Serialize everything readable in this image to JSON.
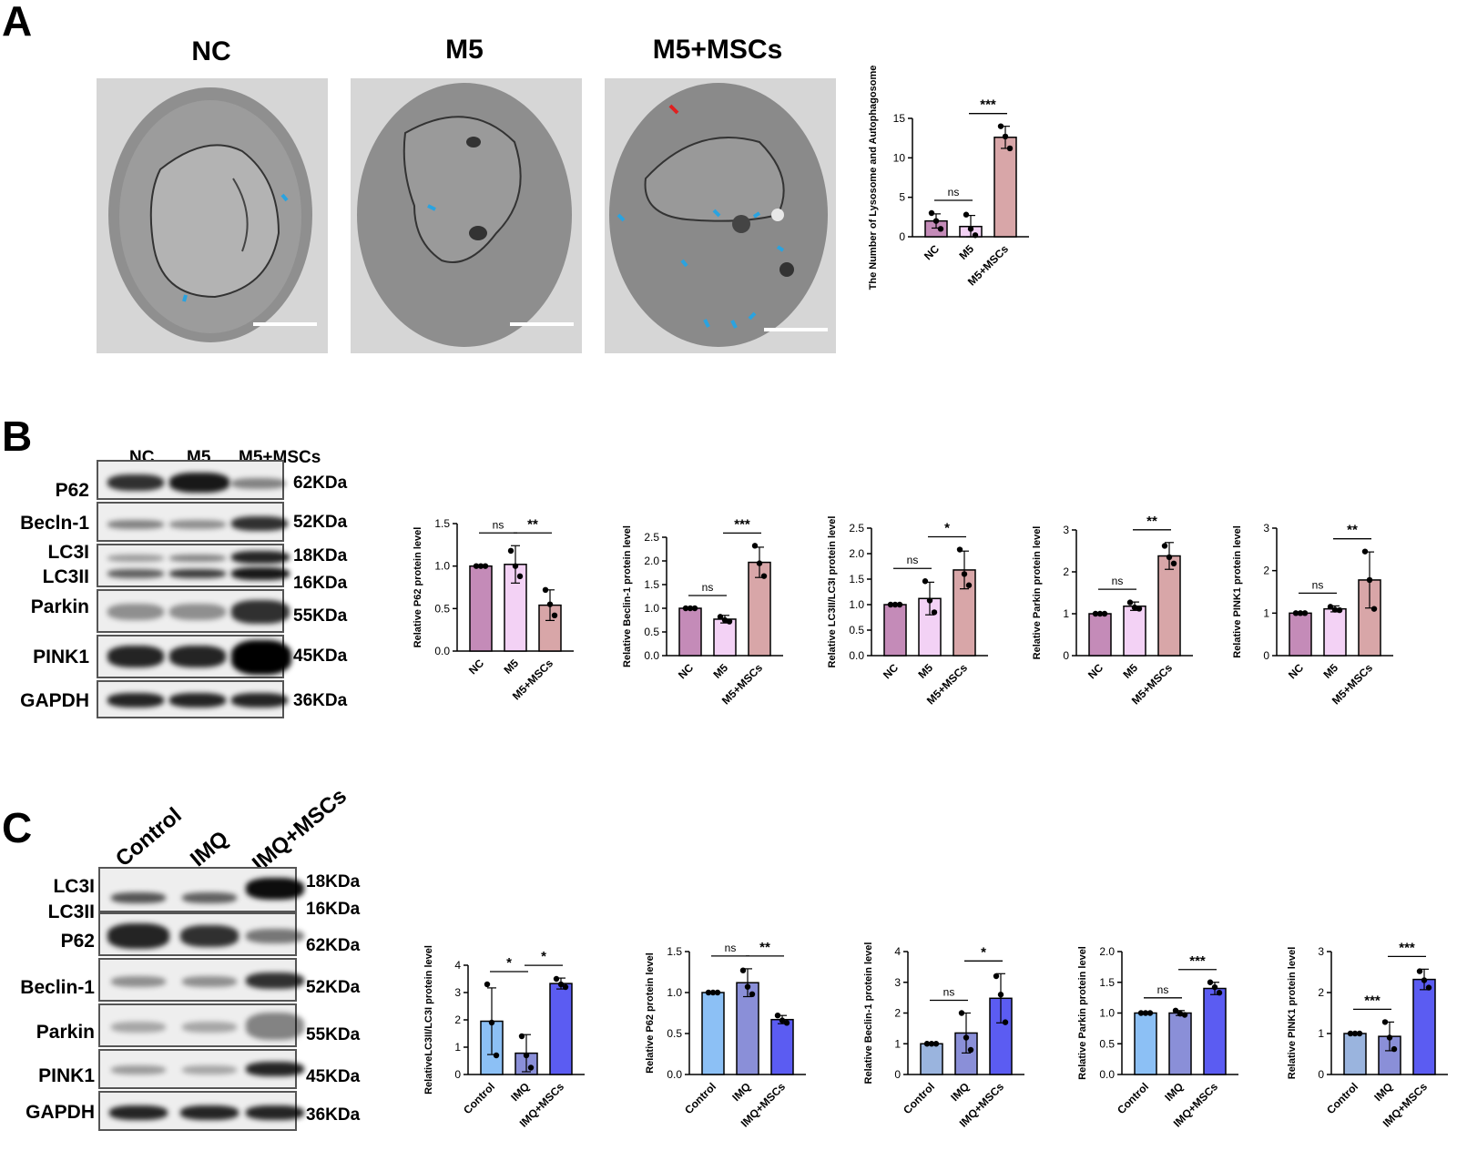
{
  "panels": {
    "a": "A",
    "b": "B",
    "c": "C"
  },
  "em": {
    "titles": [
      "NC",
      "M5",
      "M5+MSCs"
    ]
  },
  "blot_b": {
    "lanes": [
      "NC",
      "M5",
      "M5+MSCs"
    ],
    "proteins": [
      "P62",
      "Becln-1",
      "LC3I",
      "LC3II",
      "Parkin",
      "PINK1",
      "GAPDH"
    ],
    "kda": [
      "62KDa",
      "52KDa",
      "18KDa",
      "16KDa",
      "55KDa",
      "45KDa",
      "36KDa"
    ]
  },
  "blot_c": {
    "lanes": [
      "Control",
      "IMQ",
      "IMQ+MSCs"
    ],
    "proteins": [
      "LC3I",
      "LC3II",
      "P62",
      "Beclin-1",
      "Parkin",
      "PINK1",
      "GAPDH"
    ],
    "kda": [
      "18KDa",
      "16KDa",
      "62KDa",
      "52KDa",
      "55KDa",
      "45KDa",
      "36KDa"
    ]
  },
  "colors": {
    "b_bars": [
      "#c48bb8",
      "#f3d2f5",
      "#d8a6a8"
    ],
    "c_bars": [
      "#8cc0f5",
      "#8a8fd8",
      "#5b5cf2"
    ],
    "c_bars_alt": [
      "#9ab4de",
      "#8a8fd8",
      "#5b5cf2"
    ]
  },
  "chart_data": [
    {
      "id": "a-lyso",
      "type": "bar",
      "categories": [
        "NC",
        "M5",
        "M5+MSCs"
      ],
      "values": [
        2.0,
        1.3,
        12.6
      ],
      "errors": [
        0.9,
        1.4,
        1.4
      ],
      "points": [
        [
          3.0,
          2.0,
          1.0
        ],
        [
          2.8,
          1.0,
          0.2
        ],
        [
          14.0,
          12.7,
          11.2
        ]
      ],
      "ylabel": "The Number of Lysosome and Autophagosome",
      "ylim": [
        0,
        15
      ],
      "yticks": [
        0,
        5,
        10,
        15
      ],
      "sig": [
        {
          "from": 0,
          "to": 1,
          "label": "ns"
        },
        {
          "from": 1,
          "to": 2,
          "label": "***"
        }
      ],
      "palette": "b_bars"
    },
    {
      "id": "b-p62",
      "type": "bar",
      "categories": [
        "NC",
        "M5",
        "M5+MSCs"
      ],
      "values": [
        1.0,
        1.02,
        0.54
      ],
      "errors": [
        0.0,
        0.22,
        0.18
      ],
      "points": [
        [
          1,
          1,
          1
        ],
        [
          1.18,
          1.0,
          0.88
        ],
        [
          0.72,
          0.55,
          0.42
        ]
      ],
      "ylabel": "Relative P62 protein level",
      "ylim": [
        0,
        1.5
      ],
      "yticks": [
        0.0,
        0.5,
        1.0,
        1.5
      ],
      "sig": [
        {
          "from": 0,
          "to": 1,
          "label": "ns"
        },
        {
          "from": 1,
          "to": 2,
          "label": "**"
        }
      ],
      "palette": "b_bars"
    },
    {
      "id": "b-beclin",
      "type": "bar",
      "categories": [
        "NC",
        "M5",
        "M5+MSCs"
      ],
      "values": [
        1.0,
        0.77,
        1.97
      ],
      "errors": [
        0.0,
        0.08,
        0.32
      ],
      "points": [
        [
          1,
          1,
          1
        ],
        [
          0.82,
          0.75,
          0.72
        ],
        [
          2.32,
          1.95,
          1.68
        ]
      ],
      "ylabel": "Relative Beclin-1 protein level",
      "ylim": [
        0,
        2.5
      ],
      "yticks": [
        0.0,
        0.5,
        1.0,
        1.5,
        2.0,
        2.5
      ],
      "sig": [
        {
          "from": 0,
          "to": 1,
          "label": "ns"
        },
        {
          "from": 1,
          "to": 2,
          "label": "***"
        }
      ],
      "palette": "b_bars"
    },
    {
      "id": "b-lc3",
      "type": "bar",
      "categories": [
        "NC",
        "M5",
        "M5+MSCs"
      ],
      "values": [
        1.0,
        1.12,
        1.68
      ],
      "errors": [
        0.0,
        0.32,
        0.37
      ],
      "points": [
        [
          1,
          1,
          1
        ],
        [
          1.46,
          1.08,
          0.85
        ],
        [
          2.08,
          1.6,
          1.38
        ]
      ],
      "ylabel": "Relative LC3II/LC3I protein level",
      "ylim": [
        0,
        2.5
      ],
      "yticks": [
        0.0,
        0.5,
        1.0,
        1.5,
        2.0,
        2.5
      ],
      "sig": [
        {
          "from": 0,
          "to": 1,
          "label": "ns"
        },
        {
          "from": 1,
          "to": 2,
          "label": "*"
        }
      ],
      "palette": "b_bars"
    },
    {
      "id": "b-parkin",
      "type": "bar",
      "categories": [
        "NC",
        "M5",
        "M5+MSCs"
      ],
      "values": [
        1.0,
        1.18,
        2.38
      ],
      "errors": [
        0.0,
        0.1,
        0.32
      ],
      "points": [
        [
          1,
          1,
          1
        ],
        [
          1.27,
          1.15,
          1.12
        ],
        [
          2.62,
          2.35,
          2.2
        ]
      ],
      "ylabel": "Relative Parkin protein level",
      "ylim": [
        0,
        3
      ],
      "yticks": [
        0,
        1,
        2,
        3
      ],
      "sig": [
        {
          "from": 0,
          "to": 1,
          "label": "ns"
        },
        {
          "from": 1,
          "to": 2,
          "label": "**"
        }
      ],
      "palette": "b_bars"
    },
    {
      "id": "b-pink1",
      "type": "bar",
      "categories": [
        "NC",
        "M5",
        "M5+MSCs"
      ],
      "values": [
        1.0,
        1.1,
        1.78
      ],
      "errors": [
        0.0,
        0.07,
        0.66
      ],
      "points": [
        [
          1,
          1,
          1
        ],
        [
          1.15,
          1.08,
          1.07
        ],
        [
          2.45,
          1.78,
          1.1
        ]
      ],
      "ylabel": "Relative PINK1 protein level",
      "ylim": [
        0,
        3
      ],
      "yticks": [
        0,
        1,
        2,
        3
      ],
      "sig": [
        {
          "from": 0,
          "to": 1,
          "label": "ns"
        },
        {
          "from": 1,
          "to": 2,
          "label": "**"
        }
      ],
      "palette": "b_bars"
    },
    {
      "id": "c-lc3",
      "type": "bar",
      "categories": [
        "Control",
        "IMQ",
        "IMQ+MSCs"
      ],
      "values": [
        1.95,
        0.78,
        3.33
      ],
      "errors": [
        1.22,
        0.68,
        0.2
      ],
      "points": [
        [
          3.3,
          1.9,
          0.7
        ],
        [
          1.4,
          0.7,
          0.25
        ],
        [
          3.5,
          3.3,
          3.2
        ]
      ],
      "ylabel": "RelativeLC3II/LC3I protein level",
      "ylim": [
        0,
        4
      ],
      "yticks": [
        0,
        1,
        2,
        3,
        4
      ],
      "sig": [
        {
          "from": 0,
          "to": 1,
          "label": "*"
        },
        {
          "from": 1,
          "to": 2,
          "label": "*"
        }
      ],
      "palette": "c_bars"
    },
    {
      "id": "c-p62",
      "type": "bar",
      "categories": [
        "Control",
        "IMQ",
        "IMQ+MSCs"
      ],
      "values": [
        1.0,
        1.12,
        0.67
      ],
      "errors": [
        0.0,
        0.17,
        0.05
      ],
      "points": [
        [
          1,
          1,
          1
        ],
        [
          1.27,
          1.07,
          0.98
        ],
        [
          0.72,
          0.66,
          0.63
        ]
      ],
      "ylabel": "Relative P62 protein level",
      "ylim": [
        0,
        1.5
      ],
      "yticks": [
        0.0,
        0.5,
        1.0,
        1.5
      ],
      "sig": [
        {
          "from": 0,
          "to": 1,
          "label": "ns"
        },
        {
          "from": 1,
          "to": 2,
          "label": "**"
        }
      ],
      "palette": "c_bars"
    },
    {
      "id": "c-beclin",
      "type": "bar",
      "categories": [
        "Control",
        "IMQ",
        "IMQ+MSCs"
      ],
      "values": [
        1.0,
        1.35,
        2.48
      ],
      "errors": [
        0.0,
        0.65,
        0.8
      ],
      "points": [
        [
          1,
          1,
          1
        ],
        [
          2.0,
          1.2,
          0.8
        ],
        [
          3.2,
          2.6,
          1.7
        ]
      ],
      "ylabel": "Relative Beclin-1 protein level",
      "ylim": [
        0,
        4
      ],
      "yticks": [
        0,
        1,
        2,
        3,
        4
      ],
      "sig": [
        {
          "from": 0,
          "to": 1,
          "label": "ns"
        },
        {
          "from": 1,
          "to": 2,
          "label": "*"
        }
      ],
      "palette": "c_bars_alt"
    },
    {
      "id": "c-parkin",
      "type": "bar",
      "categories": [
        "Control",
        "IMQ",
        "IMQ+MSCs"
      ],
      "values": [
        1.0,
        1.0,
        1.4
      ],
      "errors": [
        0.0,
        0.04,
        0.1
      ],
      "points": [
        [
          1,
          1,
          1
        ],
        [
          1.04,
          0.99,
          0.97
        ],
        [
          1.5,
          1.42,
          1.33
        ]
      ],
      "ylabel": "Relative Parkin protein level",
      "ylim": [
        0,
        2
      ],
      "yticks": [
        0.0,
        0.5,
        1.0,
        1.5,
        2.0
      ],
      "sig": [
        {
          "from": 0,
          "to": 1,
          "label": "ns"
        },
        {
          "from": 1,
          "to": 2,
          "label": "***"
        }
      ],
      "palette": "c_bars"
    },
    {
      "id": "c-pink1",
      "type": "bar",
      "categories": [
        "Control",
        "IMQ",
        "IMQ+MSCs"
      ],
      "values": [
        1.0,
        0.93,
        2.32
      ],
      "errors": [
        0.0,
        0.35,
        0.25
      ],
      "points": [
        [
          1,
          1,
          1
        ],
        [
          1.28,
          0.9,
          0.62
        ],
        [
          2.52,
          2.3,
          2.12
        ]
      ],
      "ylabel": "Relative PINK1 protein level",
      "ylim": [
        0,
        3
      ],
      "yticks": [
        0,
        1,
        2,
        3
      ],
      "sig": [
        {
          "from": 0,
          "to": 1,
          "label": "***"
        },
        {
          "from": 1,
          "to": 2,
          "label": "***"
        }
      ],
      "palette": "c_bars_alt"
    }
  ]
}
